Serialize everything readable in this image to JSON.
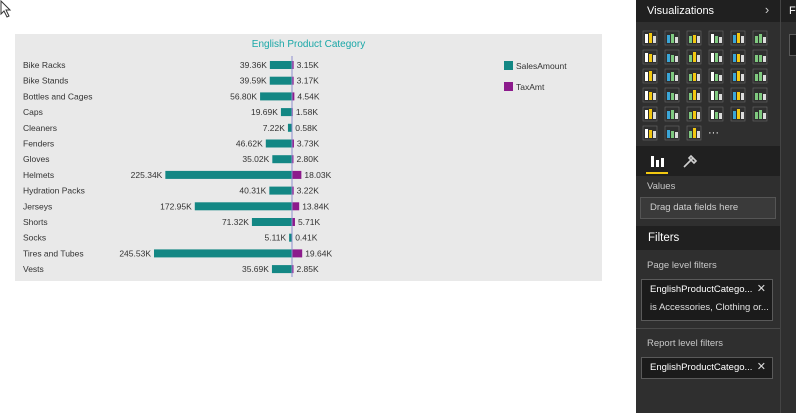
{
  "visualizations_pane": {
    "title": "Visualizations",
    "values_label": "Values",
    "values_placeholder": "Drag data fields here",
    "more_label": "···",
    "icons": [
      "stacked-bar-chart-icon",
      "stacked-column-chart-icon",
      "clustered-bar-chart-icon",
      "clustered-column-chart-icon",
      "100-stacked-bar-chart-icon",
      "100-stacked-column-chart-icon",
      "line-chart-icon",
      "area-chart-icon",
      "stacked-area-chart-icon",
      "line-and-column-chart-icon",
      "line-and-stacked-column-chart-icon",
      "scatter-chart-icon",
      "pie-chart-icon",
      "treemap-icon",
      "map-icon",
      "filled-map-icon",
      "table-icon",
      "matrix-icon",
      "funnel-icon",
      "gauge-icon",
      "card-icon",
      "multi-row-card-icon",
      "slicer-icon",
      "donut-chart-icon",
      "waterfall-chart-icon",
      "ribbon-chart-icon",
      "kpi-icon",
      "shape-map-icon",
      "globe-icon",
      "r-visual-icon",
      "custom-visual-icon",
      "custom-table-icon",
      "custom-chart-icon",
      "more-visuals-icon"
    ]
  },
  "filters_pane": {
    "title": "Filters",
    "page_level_label": "Page level filters",
    "page_filter": {
      "name": "EnglishProductCatego...",
      "condition": "is Accessories, Clothing or..."
    },
    "report_level_label": "Report level filters",
    "report_filter": {
      "name": "EnglishProductCatego..."
    }
  },
  "next_pane": {
    "title_fragment": "F"
  },
  "colors": {
    "sales": "#138784",
    "tax": "#8c1b8c",
    "title": "#19a7a7"
  },
  "chart_data": {
    "type": "bar",
    "title": "English Product Category",
    "categories": [
      "Bike Racks",
      "Bike Stands",
      "Bottles and Cages",
      "Caps",
      "Cleaners",
      "Fenders",
      "Gloves",
      "Helmets",
      "Hydration Packs",
      "Jerseys",
      "Shorts",
      "Socks",
      "Tires and Tubes",
      "Vests"
    ],
    "series": [
      {
        "name": "SalesAmount",
        "values": [
          39.36,
          39.59,
          56.8,
          19.69,
          7.22,
          46.62,
          35.02,
          225.34,
          40.31,
          172.95,
          71.32,
          5.11,
          245.53,
          35.69
        ],
        "labels": [
          "39.36K",
          "39.59K",
          "56.80K",
          "19.69K",
          "7.22K",
          "46.62K",
          "35.02K",
          "225.34K",
          "40.31K",
          "172.95K",
          "71.32K",
          "5.11K",
          "245.53K",
          "35.69K"
        ]
      },
      {
        "name": "TaxAmt",
        "values": [
          3.15,
          3.17,
          4.54,
          1.58,
          0.58,
          3.73,
          2.8,
          18.03,
          3.22,
          13.84,
          5.71,
          0.41,
          19.64,
          2.85
        ],
        "labels": [
          "3.15K",
          "3.17K",
          "4.54K",
          "1.58K",
          "0.58K",
          "3.73K",
          "2.80K",
          "18.03K",
          "3.22K",
          "13.84K",
          "5.71K",
          "0.41K",
          "19.64K",
          "2.85K"
        ]
      }
    ],
    "legend": "top-right"
  }
}
